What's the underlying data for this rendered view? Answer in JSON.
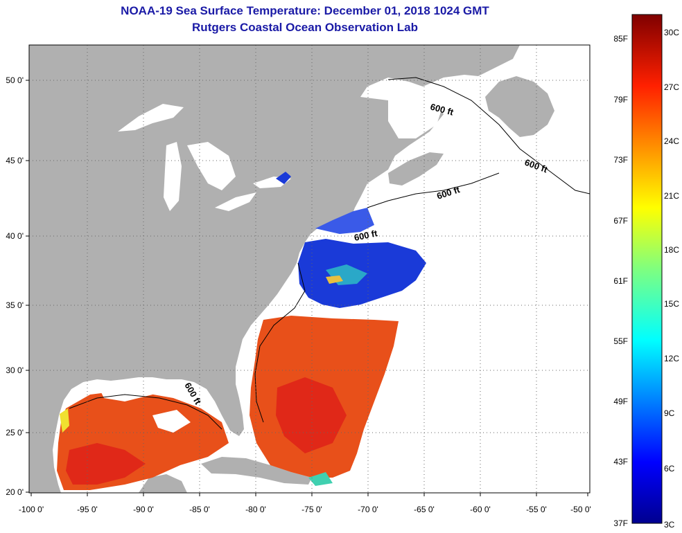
{
  "title": {
    "line1": "NOAA-19 Sea Surface Temperature:  December 01, 2018 1024 GMT",
    "line2": "Rutgers Coastal Ocean Observation Lab"
  },
  "axes": {
    "lon_labels": [
      "-100 0'",
      "-95 0'",
      "-90 0'",
      "-85 0'",
      "-80 0'",
      "-75 0'",
      "-70 0'",
      "-65 0'",
      "-60 0'",
      "-55 0'",
      "-50 0'"
    ],
    "lat_labels": [
      "50 0'",
      "45 0'",
      "40 0'",
      "35 0'",
      "30 0'",
      "25 0'",
      "20 0'"
    ]
  },
  "contours": [
    "600 ft",
    "600 ft",
    "600 ft",
    "600 ft",
    "600 ft"
  ],
  "colorbar": {
    "fahrenheit": [
      "85F",
      "79F",
      "73F",
      "67F",
      "61F",
      "55F",
      "49F",
      "43F",
      "37F"
    ],
    "celsius": [
      "30C",
      "27C",
      "24C",
      "21C",
      "18C",
      "15C",
      "12C",
      "9C",
      "6C",
      "3C"
    ]
  },
  "colors": {
    "land": "#b0b0b0",
    "ocean_nodata": "#ffffff",
    "title": "#1a1aa6",
    "warm": "#e8501a",
    "cold": "#1a3ad8"
  }
}
